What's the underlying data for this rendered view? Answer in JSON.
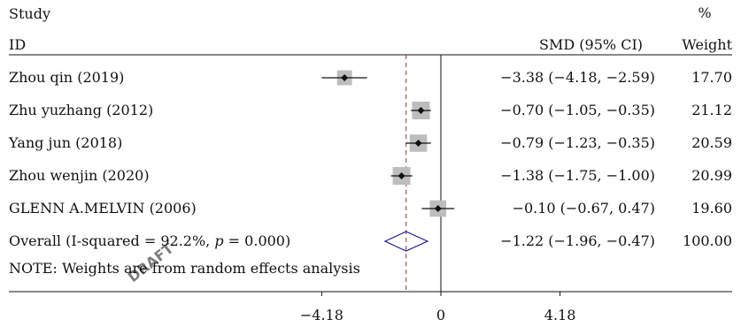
{
  "chart_data": {
    "type": "forest",
    "header": {
      "study_line1": "Study",
      "study_line2": "ID",
      "effect_label": "SMD (95% CI)",
      "weight_line1": "%",
      "weight_line2": "Weight"
    },
    "studies": [
      {
        "label": "Zhou qin (2019)",
        "smd": -3.38,
        "lower": -4.18,
        "upper": -2.59,
        "ci_text": "−3.38 (−4.18, −2.59)",
        "weight": "17.70"
      },
      {
        "label": "Zhu yuzhang (2012)",
        "smd": -0.7,
        "lower": -1.05,
        "upper": -0.35,
        "ci_text": "−0.70 (−1.05, −0.35)",
        "weight": "21.12"
      },
      {
        "label": "Yang jun (2018)",
        "smd": -0.79,
        "lower": -1.23,
        "upper": -0.35,
        "ci_text": "−0.79 (−1.23, −0.35)",
        "weight": "20.59"
      },
      {
        "label": "Zhou wenjin (2020)",
        "smd": -1.38,
        "lower": -1.75,
        "upper": -1.0,
        "ci_text": "−1.38 (−1.75, −1.00)",
        "weight": "20.99"
      },
      {
        "label": "GLENN A.MELVIN (2006)",
        "smd": -0.1,
        "lower": -0.67,
        "upper": 0.47,
        "ci_text": "−0.10 (−0.67, 0.47)",
        "weight": "19.60"
      }
    ],
    "overall": {
      "label_prefix": "Overall (I-squared = 92.2%, ",
      "label_p": "p",
      "label_suffix": " = 0.000)",
      "smd": -1.22,
      "lower": -1.96,
      "upper": -0.47,
      "ci_text": "−1.22 (−1.96, −0.47)",
      "weight": "100.00"
    },
    "note": "NOTE: Weights are from random effects analysis",
    "xaxis": {
      "range": [
        -4.18,
        4.18
      ],
      "ticks": [
        -4.18,
        0,
        4.18
      ],
      "tick_labels": [
        "−4.18",
        "0",
        "4.18"
      ]
    },
    "null_line": 0,
    "summary_line": -1.22,
    "colors": {
      "text": "#111111",
      "marker": "#111111",
      "weight_box": "#bdbdbd",
      "summary_dash": "#8b3a3a",
      "diamond": "#1b1b8f",
      "watermark": "#d9d9d9"
    },
    "watermark_text": "DRAFT"
  }
}
